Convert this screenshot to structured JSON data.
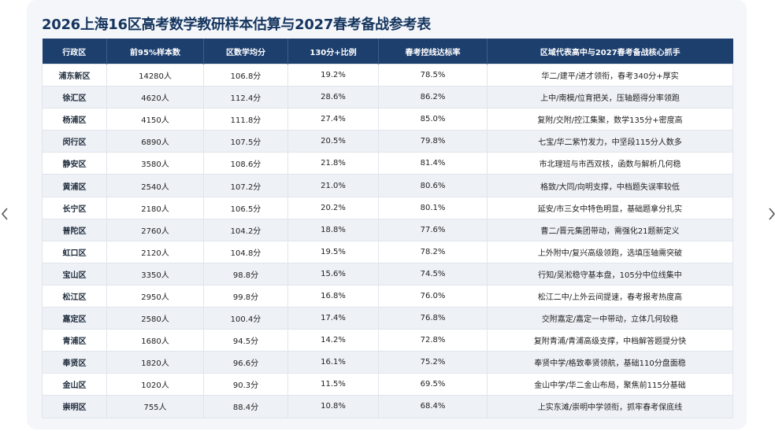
{
  "title": "2026上海16区高考数学教研样本估算与2027春考备战参考表",
  "columns": [
    "行政区",
    "前95%样本数",
    "区数学均分",
    "130分+比例",
    "春考控线达标率",
    "区域代表高中与2027春考备战核心抓手"
  ],
  "rows": [
    [
      "浦东新区",
      "14280人",
      "106.8分",
      "19.2%",
      "78.5%",
      "华二/建平/进才领衔，春考340分+厚实"
    ],
    [
      "徐汇区",
      "4620人",
      "112.4分",
      "28.6%",
      "86.2%",
      "上中/南模/位育把关，压轴题得分率领跑"
    ],
    [
      "杨浦区",
      "4150人",
      "111.8分",
      "27.4%",
      "85.0%",
      "复附/交附/控江集聚，数学135分+密度高"
    ],
    [
      "闵行区",
      "6890人",
      "107.5分",
      "20.5%",
      "79.8%",
      "七宝/华二紫竹发力，中坚段115分人数多"
    ],
    [
      "静安区",
      "3580人",
      "108.6分",
      "21.8%",
      "81.4%",
      "市北理班与市西双核，函数与解析几何稳"
    ],
    [
      "黄浦区",
      "2540人",
      "107.2分",
      "21.0%",
      "80.6%",
      "格致/大同/向明支撑，中档题失误率较低"
    ],
    [
      "长宁区",
      "2180人",
      "106.5分",
      "20.2%",
      "80.1%",
      "延安/市三女中特色明显，基础题拿分扎实"
    ],
    [
      "普陀区",
      "2760人",
      "104.2分",
      "18.8%",
      "77.6%",
      "曹二/晋元集团带动，需强化21题新定义"
    ],
    [
      "虹口区",
      "2120人",
      "104.8分",
      "19.5%",
      "78.2%",
      "上外附中/复兴高级领跑，选填压轴需突破"
    ],
    [
      "宝山区",
      "3350人",
      "98.8分",
      "15.6%",
      "74.5%",
      "行知/吴淞稳守基本盘，105分中位线集中"
    ],
    [
      "松江区",
      "2950人",
      "99.8分",
      "16.8%",
      "76.0%",
      "松江二中/上外云间提速，春考报考热度高"
    ],
    [
      "嘉定区",
      "2580人",
      "100.4分",
      "17.4%",
      "76.8%",
      "交附嘉定/嘉定一中带动，立体几何较稳"
    ],
    [
      "青浦区",
      "1680人",
      "94.5分",
      "14.2%",
      "72.8%",
      "复附青浦/青浦高级支撑，中档解答题提分快"
    ],
    [
      "奉贤区",
      "1820人",
      "96.6分",
      "16.1%",
      "75.2%",
      "奉贤中学/格致奉贤领航，基础110分盘面稳"
    ],
    [
      "金山区",
      "1020人",
      "90.3分",
      "11.5%",
      "69.5%",
      "金山中学/华二金山布局，聚焦前115分基础"
    ],
    [
      "崇明区",
      "755人",
      "88.4分",
      "10.8%",
      "68.4%",
      "上实东滩/崇明中学领衔，抓牢春考保底线"
    ]
  ],
  "nav": {
    "prev_icon": "chevron-left-icon",
    "next_icon": "chevron-right-icon"
  }
}
